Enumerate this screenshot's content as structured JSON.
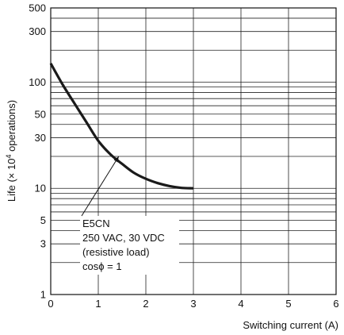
{
  "chart_data": {
    "type": "line",
    "ylabel_prefix": "Life (× 10",
    "ylabel_exp": "4",
    "ylabel_suffix": " operations)",
    "xlabel": "Switching current (A)",
    "xlim": [
      0,
      6
    ],
    "ylim": [
      1,
      500
    ],
    "yscale": "log",
    "grid": true,
    "x_ticks": [
      "0",
      "1",
      "2",
      "3",
      "4",
      "5",
      "6"
    ],
    "y_ticks": [
      {
        "value": 500,
        "label": "500"
      },
      {
        "value": 300,
        "label": "300"
      },
      {
        "value": 100,
        "label": "100"
      },
      {
        "value": 50,
        "label": "50"
      },
      {
        "value": 30,
        "label": "30"
      },
      {
        "value": 10,
        "label": "10"
      },
      {
        "value": 5,
        "label": "5"
      },
      {
        "value": 3,
        "label": "3"
      },
      {
        "value": 1,
        "label": "1"
      }
    ],
    "minor_y_gridlines": [
      2,
      4,
      6,
      7,
      8,
      9,
      20,
      40,
      60,
      70,
      80,
      90,
      200,
      400
    ],
    "series": [
      {
        "color": "#1a1a1a",
        "x": [
          0.0,
          0.25,
          0.5,
          0.75,
          1.0,
          1.25,
          1.5,
          1.75,
          2.0,
          2.25,
          2.5,
          2.75,
          3.0
        ],
        "y": [
          150,
          95,
          63,
          42,
          28,
          21,
          17,
          14,
          12.3,
          11.2,
          10.5,
          10.1,
          10.0
        ]
      }
    ],
    "annotation": {
      "lines": [
        "E5CN",
        "250 VAC, 30 VDC",
        "(resistive load)",
        "cosϕ = 1"
      ],
      "arrow_to": {
        "x": 1.43,
        "y": 20
      }
    }
  }
}
